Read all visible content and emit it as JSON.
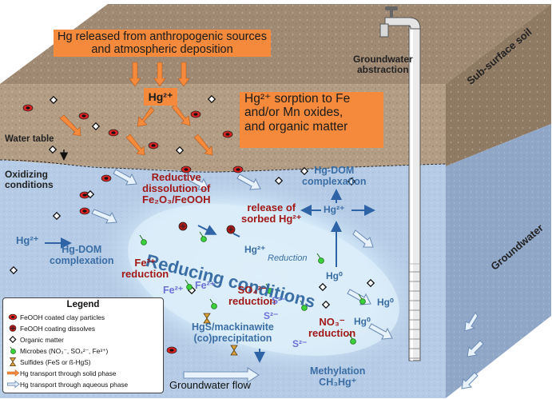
{
  "labels": {
    "hg_released": "Hg released from anthropogenic sources and atmospheric deposition",
    "hg2_top": "Hg²⁺",
    "sorption_l1": "Hg²⁺ sorption to Fe",
    "sorption_l2": "and/or Mn oxides,",
    "sorption_l3": "and organic matter",
    "water_table": "Water table",
    "groundwater_abstraction_l1": "Groundwater",
    "groundwater_abstraction_l2": "abstraction",
    "sub_surface_soil": "Sub-surface soil",
    "groundwater_side": "Groundwater",
    "oxidizing_l1": "Oxidizing",
    "oxidizing_l2": "conditions",
    "reductive_l1": "Reductive",
    "reductive_l2": "dissolution of",
    "reductive_l3": "Fe₂O₃/FeOOH",
    "release_l1": "release of",
    "release_l2": "sorbed Hg²⁺",
    "hgdom_right_l1": "Hg-DOM",
    "hgdom_right_l2": "complexation",
    "hg2_right": "Hg²⁺",
    "hg2_left": "Hg²⁺",
    "hgdom_left_l1": "Hg-DOM",
    "hgdom_left_l2": "complexation",
    "reducing": "Reducing conditions",
    "hg2_reduction": "Hg²⁺",
    "reduction_word": "Reduction",
    "fe3_l1": "Fe³⁺",
    "fe3_l2": "reduction",
    "fe2_a": "Fe²⁺",
    "fe2_b": "Fe²⁺",
    "so4_l1": "SO₄²⁻",
    "so4_l2": "reduction",
    "s2_a": "S²⁻",
    "s2_b": "S²⁻",
    "s2_c": "S²⁻",
    "hgs_l1": "HgS/mackinawite",
    "hgs_l2": "(co)precipitation",
    "hg0_a": "Hg⁰",
    "hg0_b": "Hg⁰",
    "hg0_c": "Hg⁰",
    "no3_l1": "NO₃⁻",
    "no3_l2": "reduction",
    "methylation_l1": "Methylation",
    "methylation_l2": "CH₃Hg⁺",
    "groundwater_flow": "Groundwater flow"
  },
  "legend": {
    "title": "Legend",
    "items": [
      {
        "symbol": "clay-particle",
        "text": "FeOOH coated clay particles"
      },
      {
        "symbol": "coating-dissolves",
        "text": "FeOOH coating dissolves"
      },
      {
        "symbol": "organic-matter",
        "text": "Organic matter"
      },
      {
        "symbol": "microbe",
        "text": "Microbes (NO₃⁻, SO₄²⁻, Fe³⁺)"
      },
      {
        "symbol": "sulfide",
        "text": "Sulfides (FeS or ß-HgS)"
      },
      {
        "symbol": "solid-transport",
        "text": "Hg transport through solid phase"
      },
      {
        "symbol": "aqueous-transport",
        "text": "Hg transport through aqueous phase"
      }
    ]
  },
  "colors": {
    "soil_top": "#a08a74",
    "soil_front": "#b49e86",
    "soil_side": "#8f7a64",
    "groundwater_front": "#b6cce6",
    "groundwater_side": "#90a7c8",
    "reducing_zone": "#dceefa",
    "orange_box": "#f58a3c",
    "dark_red_text": "#a01818",
    "blue_text": "#3a6ea5"
  }
}
